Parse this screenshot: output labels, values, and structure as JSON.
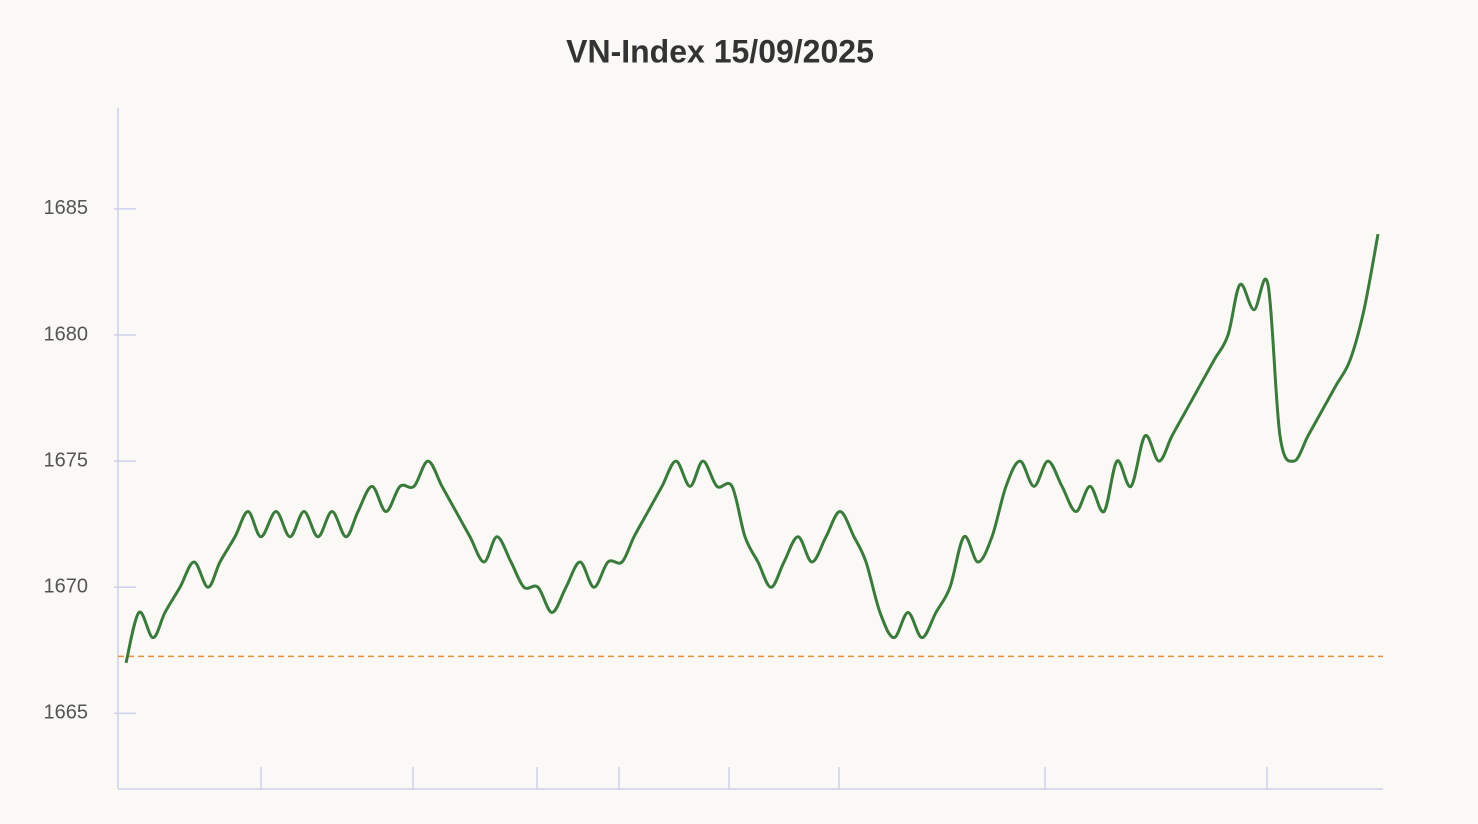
{
  "chart_data": {
    "type": "line",
    "title": "VN-Index 15/09/2025",
    "x": [
      8,
      21,
      35,
      47,
      62,
      76,
      90,
      102,
      117,
      130,
      143,
      158,
      172,
      186,
      200,
      214,
      228,
      240,
      254,
      268,
      282,
      296,
      310,
      324,
      338,
      352,
      366,
      379,
      393,
      406,
      420,
      434,
      448,
      462,
      476,
      490,
      504,
      516,
      530,
      544,
      558,
      572,
      585,
      599,
      614,
      627,
      640,
      653,
      666,
      680,
      694,
      708,
      722,
      736,
      748,
      762,
      776,
      790,
      804,
      818,
      832,
      846,
      860,
      874,
      888,
      902,
      916,
      930,
      944,
      958,
      972,
      986,
      999,
      1013,
      1027,
      1041,
      1054,
      1068,
      1082,
      1096,
      1110,
      1122,
      1136,
      1150,
      1162,
      1176,
      1190,
      1204,
      1218,
      1232,
      1246,
      1260
    ],
    "series": [
      {
        "name": "VN-Index",
        "color": "#3a7a3a",
        "values": [
          1667,
          1669,
          1668,
          1669,
          1670,
          1671,
          1670,
          1671,
          1672,
          1673,
          1672,
          1673,
          1672,
          1673,
          1672,
          1673,
          1672,
          1673,
          1674,
          1673,
          1674,
          1674,
          1675,
          1674,
          1673,
          1672,
          1671,
          1672,
          1671,
          1670,
          1670,
          1669,
          1670,
          1671,
          1670,
          1671,
          1671,
          1672,
          1673,
          1674,
          1675,
          1674,
          1675,
          1674,
          1674,
          1672,
          1671,
          1670,
          1671,
          1672,
          1671,
          1672,
          1673,
          1672,
          1671,
          1669,
          1668,
          1669,
          1668,
          1669,
          1670,
          1672,
          1671,
          1672,
          1674,
          1675,
          1674,
          1675,
          1674,
          1673,
          1674,
          1673,
          1675,
          1674,
          1676,
          1675,
          1676,
          1677,
          1678,
          1679,
          1680,
          1682,
          1681,
          1682,
          1676,
          1675,
          1676,
          1677,
          1678,
          1679,
          1681,
          1684
        ]
      }
    ],
    "reference": {
      "value": 1667.26,
      "color": "#e8913a"
    },
    "xlim": [
      0,
      1265
    ],
    "xticks": [
      143,
      295,
      419,
      501,
      611,
      721,
      927,
      1149
    ],
    "ylim": [
      1662,
      1689
    ],
    "yticks": [
      1665,
      1670,
      1675,
      1680,
      1685
    ]
  }
}
